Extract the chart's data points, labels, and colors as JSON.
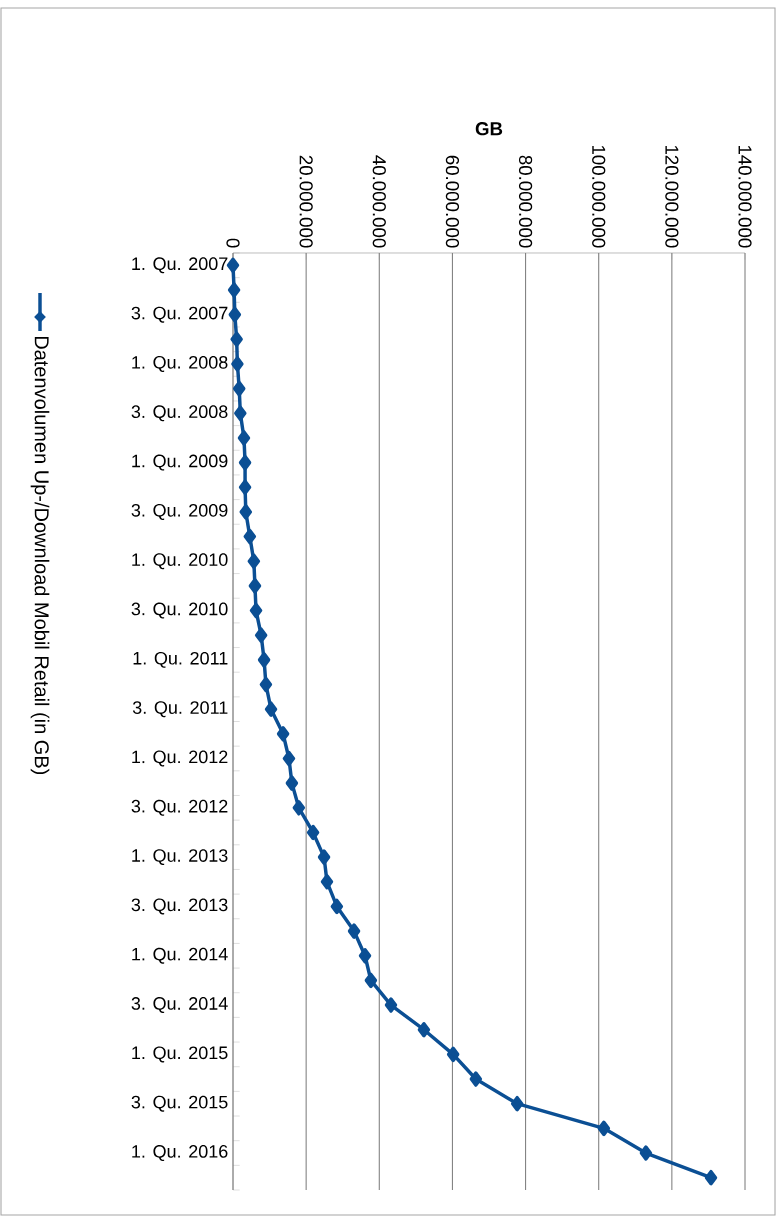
{
  "chart_data": {
    "type": "line",
    "orientation": "horizontal",
    "xlabel": "GB",
    "categories": [
      "1. Qu. 2007",
      null,
      "3. Qu. 2007",
      null,
      "1. Qu. 2008",
      null,
      "3. Qu. 2008",
      null,
      "1. Qu. 2009",
      null,
      "3. Qu. 2009",
      null,
      "1. Qu. 2010",
      null,
      "3. Qu. 2010",
      null,
      "1. Qu. 2011",
      null,
      "3. Qu. 2011",
      null,
      "1. Qu. 2012",
      null,
      "3. Qu. 2012",
      null,
      "1. Qu. 2013",
      null,
      "3. Qu. 2013",
      null,
      "1. Qu. 2014",
      null,
      "3. Qu. 2014",
      null,
      "1. Qu. 2015",
      null,
      "3. Qu. 2015",
      null,
      "1. Qu. 2016",
      null
    ],
    "series": [
      {
        "name": "Datenvolumen Up-/Download Mobil Retail (in GB)",
        "color": "#0b4f94",
        "values": [
          0,
          300000,
          500000,
          1000000,
          1200000,
          1700000,
          2000000,
          3000000,
          3300000,
          3300000,
          3500000,
          4600000,
          5700000,
          6000000,
          6300000,
          7700000,
          8500000,
          9000000,
          10400000,
          13700000,
          15300000,
          16100000,
          18000000,
          21900000,
          24900000,
          25700000,
          28400000,
          33100000,
          36100000,
          37700000,
          43200000,
          52200000,
          60200000,
          66400000,
          77700000,
          101400000,
          112900000,
          130700000
        ]
      }
    ],
    "xlim": [
      0,
      140000000
    ],
    "xticks": [
      0,
      {
        "value": 20000000,
        "label": "20.000.000"
      },
      {
        "value": 40000000,
        "label": "40.000.000"
      },
      {
        "value": 60000000,
        "label": "60.000.000"
      },
      {
        "value": 80000000,
        "label": "80.000.000"
      },
      {
        "value": 100000000,
        "label": "100.000.000"
      },
      {
        "value": 120000000,
        "label": "120.000.000"
      },
      {
        "value": 140000000,
        "label": "140.000.000"
      }
    ],
    "grid": "x",
    "legend": "left",
    "marker": "diamond",
    "line_style": "solid"
  }
}
